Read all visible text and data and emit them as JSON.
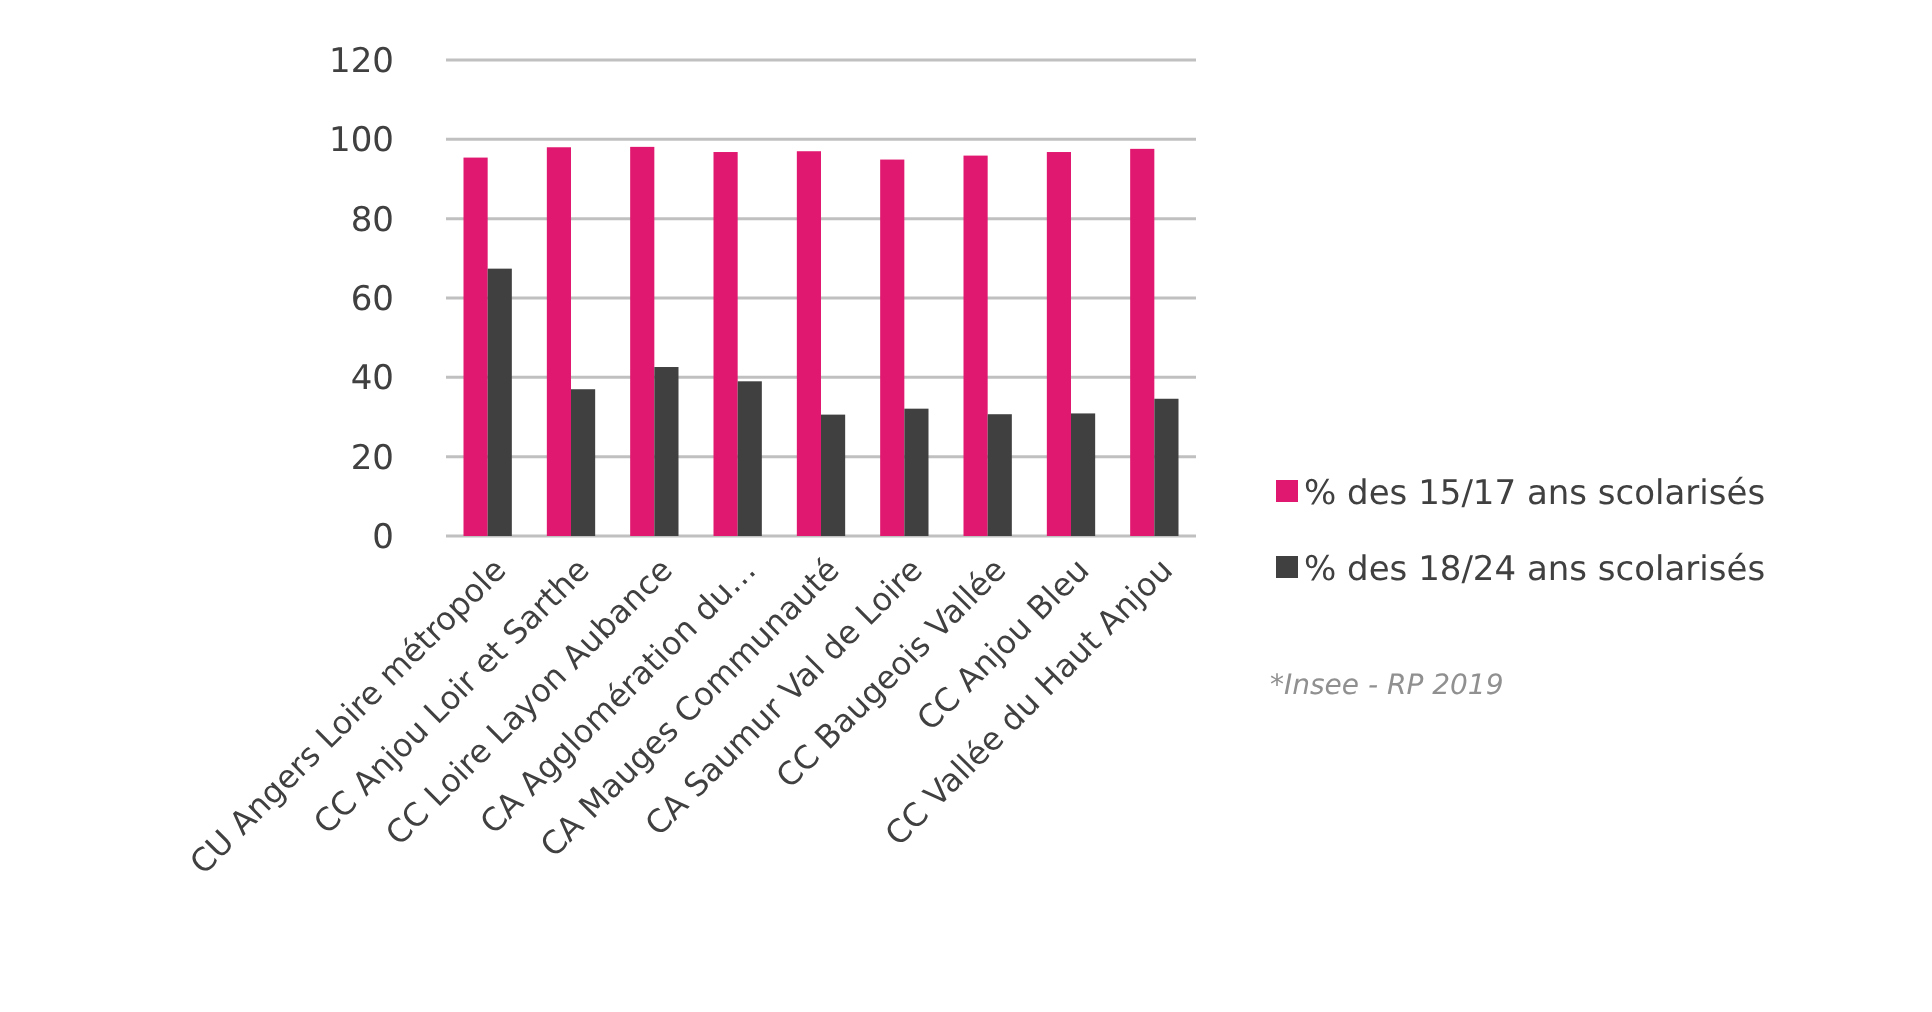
{
  "chart_data": {
    "type": "bar",
    "categories": [
      "CU Angers Loire métropole",
      "CC Anjou Loir et Sarthe",
      "CC Loire Layon Aubance",
      "CA Agglomération du…",
      "CA Mauges Communauté",
      "CA Saumur Val de Loire",
      "CC Baugeois Vallée",
      "CC Anjou Bleu",
      "CC Vallée du Haut Anjou"
    ],
    "series": [
      {
        "name": "% des 15/17 ans scolarisés",
        "color": "#e0186f",
        "values": [
          95.4,
          98.0,
          98.1,
          96.8,
          97.0,
          94.9,
          95.9,
          96.8,
          97.6
        ]
      },
      {
        "name": "% des 18/24 ans scolarisés",
        "color": "#404040",
        "values": [
          67.4,
          37.0,
          42.6,
          39.0,
          30.6,
          32.1,
          30.7,
          30.9,
          34.6
        ]
      }
    ],
    "ylim": [
      0,
      120
    ],
    "yticks": [
      0,
      20,
      40,
      60,
      80,
      100,
      120
    ],
    "grid": "y",
    "legend": "right",
    "annotations": [
      "*Insee - RP 2019"
    ]
  }
}
